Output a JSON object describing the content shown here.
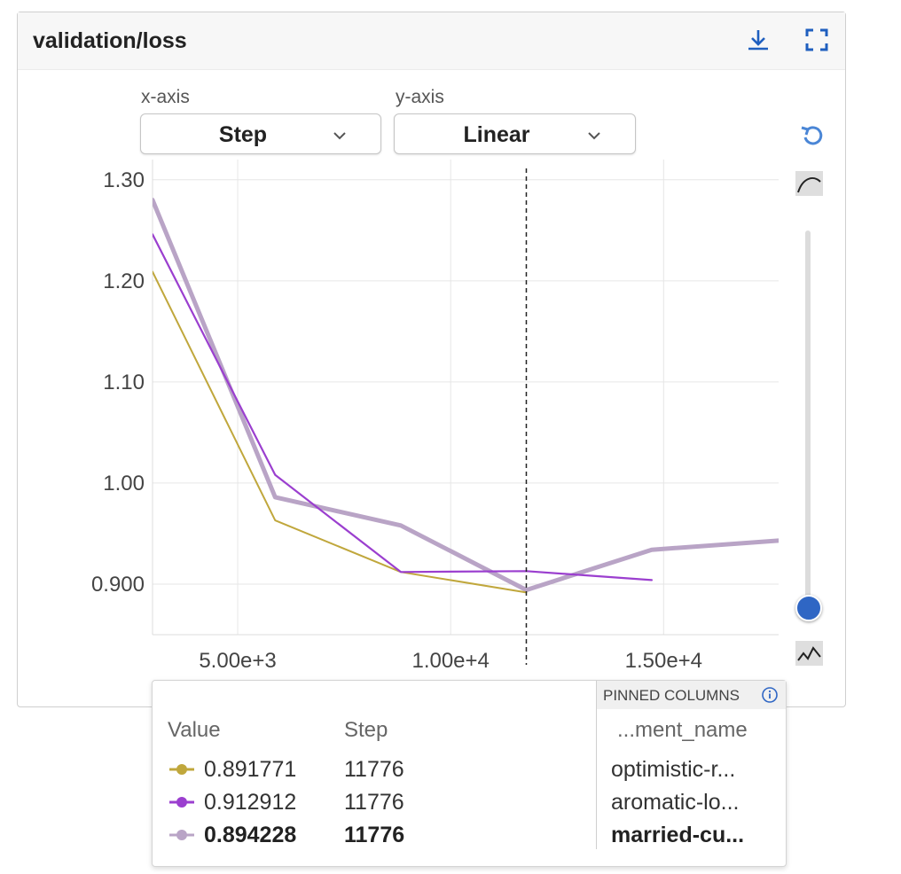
{
  "panel": {
    "title": "validation/loss",
    "icons": {
      "download": "download-icon",
      "fullscreen": "fullscreen-icon"
    }
  },
  "controls": {
    "x_axis_label": "x-axis",
    "x_axis_value": "Step",
    "y_axis_label": "y-axis",
    "y_axis_value": "Linear",
    "reset_icon": "reset-icon",
    "smoothing_icon": "smooth-curve-icon",
    "raw_icon": "raw-curve-icon",
    "smoothing_level": 0.0
  },
  "chart_data": {
    "type": "line",
    "xlim": [
      3000,
      17700
    ],
    "ylim": [
      0.85,
      1.32
    ],
    "x_ticks": [
      5000,
      10000,
      15000
    ],
    "x_tick_labels": [
      "5.00e+3",
      "1.00e+4",
      "1.50e+4"
    ],
    "y_ticks": [
      0.9,
      1.0,
      1.1,
      1.2,
      1.3
    ],
    "y_tick_labels": [
      "0.900",
      "1.00",
      "1.10",
      "1.20",
      "1.30"
    ],
    "grid": true,
    "hover_x": 11776,
    "series": [
      {
        "color": "#c0a73c",
        "points": [
          [
            3000,
            1.209
          ],
          [
            5880,
            0.963
          ],
          [
            8830,
            0.912
          ],
          [
            11776,
            0.891771
          ]
        ]
      },
      {
        "color": "#9b3fcf",
        "points": [
          [
            3000,
            1.246
          ],
          [
            5880,
            1.008
          ],
          [
            8830,
            0.912
          ],
          [
            11776,
            0.912912
          ],
          [
            14720,
            0.904
          ]
        ]
      },
      {
        "color": "#b9a4c6",
        "points": [
          [
            3000,
            1.28
          ],
          [
            5880,
            0.986
          ],
          [
            8830,
            0.958
          ],
          [
            11776,
            0.894228
          ],
          [
            14720,
            0.934
          ],
          [
            17700,
            0.943
          ]
        ]
      }
    ]
  },
  "tooltip": {
    "value_header": "Value",
    "step_header": "Step",
    "name_header": "...ment_name",
    "pinned_label": "PINNED COLUMNS",
    "info_icon": "info-icon",
    "rows": [
      {
        "color": "#c0a73c",
        "value": "0.891771",
        "step": "11776",
        "name": "optimistic-r...",
        "bold": false
      },
      {
        "color": "#9b3fcf",
        "value": "0.912912",
        "step": "11776",
        "name": "aromatic-lo...",
        "bold": false
      },
      {
        "color": "#b9a4c6",
        "value": "0.894228",
        "step": "11776",
        "name": "married-cu...",
        "bold": true
      }
    ]
  }
}
